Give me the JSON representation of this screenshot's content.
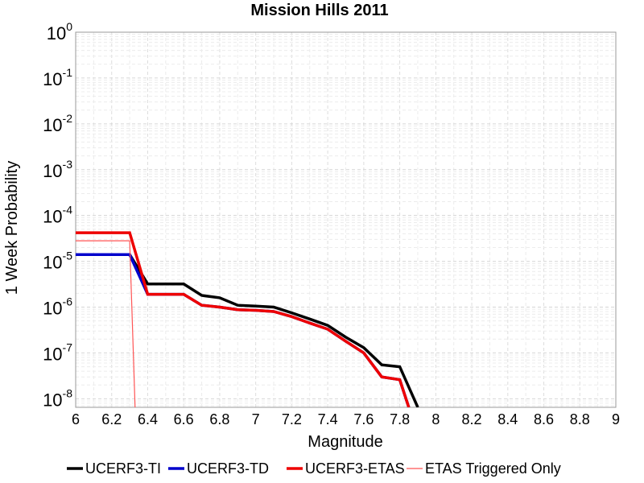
{
  "chart_data": {
    "type": "line",
    "title": "Mission Hills 2011",
    "xlabel": "Magnitude",
    "ylabel": "1 Week Probability",
    "xlim": [
      6,
      9
    ],
    "ylim": [
      6.5e-09,
      1
    ],
    "yscale": "log",
    "grid": true,
    "legend_position": "bottom",
    "x_ticks": [
      "6",
      "6.2",
      "6.4",
      "6.6",
      "6.8",
      "7",
      "7.2",
      "7.4",
      "7.6",
      "7.8",
      "8",
      "8.2",
      "8.4",
      "8.6",
      "8.8",
      "9"
    ],
    "y_ticks": [
      {
        "base": "10",
        "exp": "0"
      },
      {
        "base": "10",
        "exp": "-1"
      },
      {
        "base": "10",
        "exp": "-2"
      },
      {
        "base": "10",
        "exp": "-3"
      },
      {
        "base": "10",
        "exp": "-4"
      },
      {
        "base": "10",
        "exp": "-5"
      },
      {
        "base": "10",
        "exp": "-6"
      },
      {
        "base": "10",
        "exp": "-7"
      },
      {
        "base": "10",
        "exp": "-8"
      }
    ],
    "series": [
      {
        "name": "UCERF3-TI",
        "color": "#000000",
        "x": [
          6.0,
          6.3,
          6.4,
          6.6,
          6.7,
          6.8,
          6.9,
          7.0,
          7.1,
          7.2,
          7.3,
          7.4,
          7.5,
          7.6,
          7.7,
          7.8,
          7.9
        ],
        "y": [
          1.4e-05,
          1.4e-05,
          3.2e-06,
          3.2e-06,
          1.8e-06,
          1.6e-06,
          1.1e-06,
          1.05e-06,
          1e-06,
          7.5e-07,
          5.5e-07,
          4e-07,
          2.2e-07,
          1.3e-07,
          5.5e-08,
          5e-08,
          6.5e-09
        ]
      },
      {
        "name": "UCERF3-TD",
        "color": "#0000cc",
        "x": [
          6.0,
          6.3,
          6.4,
          6.6,
          6.7,
          6.8,
          6.9,
          7.0,
          7.1,
          7.2,
          7.3,
          7.4,
          7.5,
          7.6,
          7.7,
          7.8,
          7.85
        ],
        "y": [
          1.4e-05,
          1.4e-05,
          1.9e-06,
          1.9e-06,
          1.1e-06,
          1e-06,
          8.8e-07,
          8.5e-07,
          8e-07,
          6.2e-07,
          4.5e-07,
          3.3e-07,
          1.8e-07,
          1e-07,
          3e-08,
          2.6e-08,
          6.5e-09
        ]
      },
      {
        "name": "UCERF3-ETAS",
        "color": "#ee0000",
        "x": [
          6.0,
          6.3,
          6.4,
          6.6,
          6.7,
          6.8,
          6.9,
          7.0,
          7.1,
          7.2,
          7.3,
          7.4,
          7.5,
          7.6,
          7.7,
          7.8,
          7.85
        ],
        "y": [
          4.2e-05,
          4.2e-05,
          1.9e-06,
          1.9e-06,
          1.1e-06,
          1e-06,
          8.8e-07,
          8.5e-07,
          8e-07,
          6.2e-07,
          4.5e-07,
          3.3e-07,
          1.8e-07,
          1e-07,
          3e-08,
          2.6e-08,
          6.5e-09
        ]
      },
      {
        "name": "ETAS Triggered Only",
        "color": "#ff5555",
        "x": [
          6.0,
          6.3,
          6.33
        ],
        "y": [
          2.8e-05,
          2.8e-05,
          6.5e-09
        ]
      }
    ]
  }
}
